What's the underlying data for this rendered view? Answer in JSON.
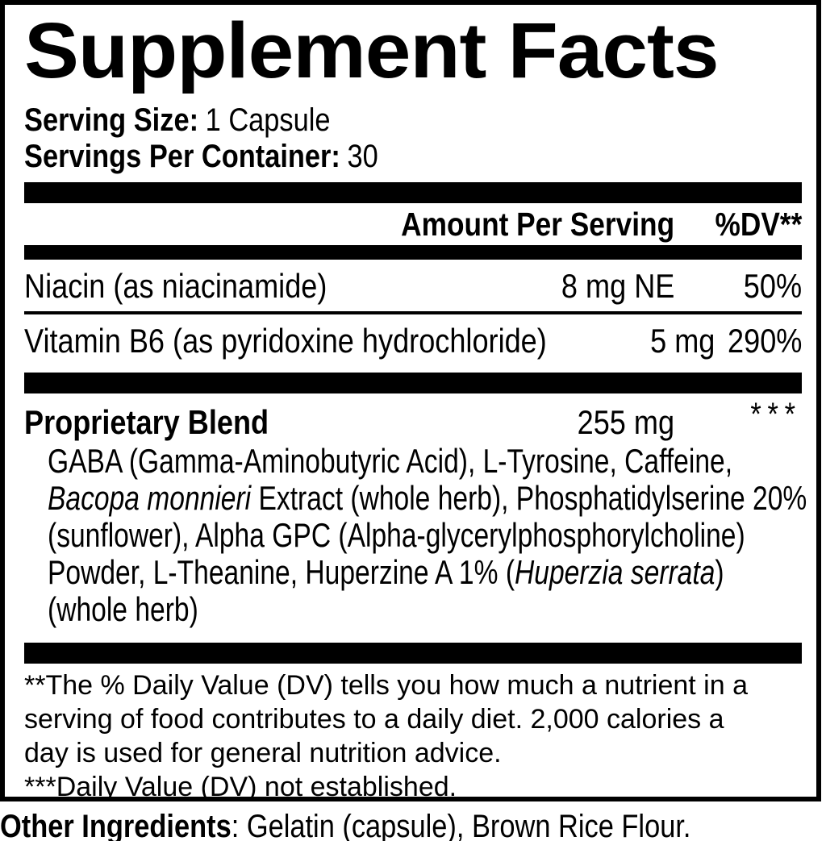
{
  "label": {
    "title": "Supplement Facts",
    "serving_size_label": "Serving Size:",
    "serving_size_value": "1 Capsule",
    "servings_per_container_label": "Servings Per Container:",
    "servings_per_container_value": "30",
    "columns": {
      "amount_header": "Amount Per Serving",
      "dv_header": "%DV**"
    },
    "nutrients": [
      {
        "name": "Niacin (as niacinamide)",
        "amount": "8 mg NE",
        "dv": "50%"
      },
      {
        "name": "Vitamin B6 (as pyridoxine hydrochloride)",
        "amount": "5 mg",
        "dv": "290%"
      }
    ],
    "blend": {
      "name": "Proprietary Blend",
      "amount": "255 mg",
      "dv": "***",
      "description_lines": [
        [
          {
            "t": "GABA (Gamma-Aminobutyric Acid), L-Tyrosine, Caffeine,",
            "i": false
          }
        ],
        [
          {
            "t": "Bacopa monnieri",
            "i": true
          },
          {
            "t": " Extract (whole herb), Phosphatidylserine 20%",
            "i": false
          }
        ],
        [
          {
            "t": "(sunflower), Alpha GPC (Alpha-glycerylphosphorylcholine)",
            "i": false
          }
        ],
        [
          {
            "t": "Powder, L-Theanine, Huperzine A 1% (",
            "i": false
          },
          {
            "t": "Huperzia serrata",
            "i": true
          },
          {
            "t": ")",
            "i": false
          }
        ],
        [
          {
            "t": "(whole herb)",
            "i": false
          }
        ]
      ]
    },
    "footnotes": [
      "**The % Daily Value (DV) tells you how much a nutrient in a",
      "serving of food contributes to a daily diet. 2,000 calories a",
      "day is used for general nutrition advice.",
      "***Daily Value (DV) not established."
    ],
    "other_ingredients_label": "Other Ingredients",
    "other_ingredients_value": ": Gelatin (capsule), Brown Rice Flour.",
    "colors": {
      "text": "#000000",
      "background": "#ffffff"
    }
  }
}
